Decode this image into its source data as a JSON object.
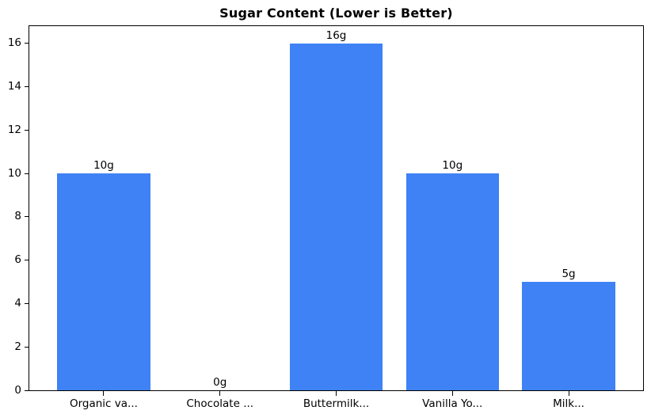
{
  "chart_data": {
    "type": "bar",
    "title": "Sugar Content (Lower is Better)",
    "categories": [
      "Organic va...",
      "Chocolate ...",
      "Buttermilk...",
      "Vanilla Yo...",
      "Milk..."
    ],
    "values": [
      10,
      0,
      16,
      10,
      5
    ],
    "value_labels": [
      "10g",
      "0g",
      "16g",
      "10g",
      "5g"
    ],
    "value_label_unit": "g",
    "yticks": [
      0,
      2,
      4,
      6,
      8,
      10,
      12,
      14,
      16
    ],
    "ylim": [
      0,
      16.8
    ],
    "xlim": [
      -0.64,
      4.64
    ],
    "bar_width": 0.8,
    "bar_color": "#3e82f5",
    "axis_color": "#000000",
    "text_color": "#000000",
    "background_color": "#ffffff",
    "xlabel": "",
    "ylabel": "",
    "grid": "off",
    "legend": "none"
  }
}
